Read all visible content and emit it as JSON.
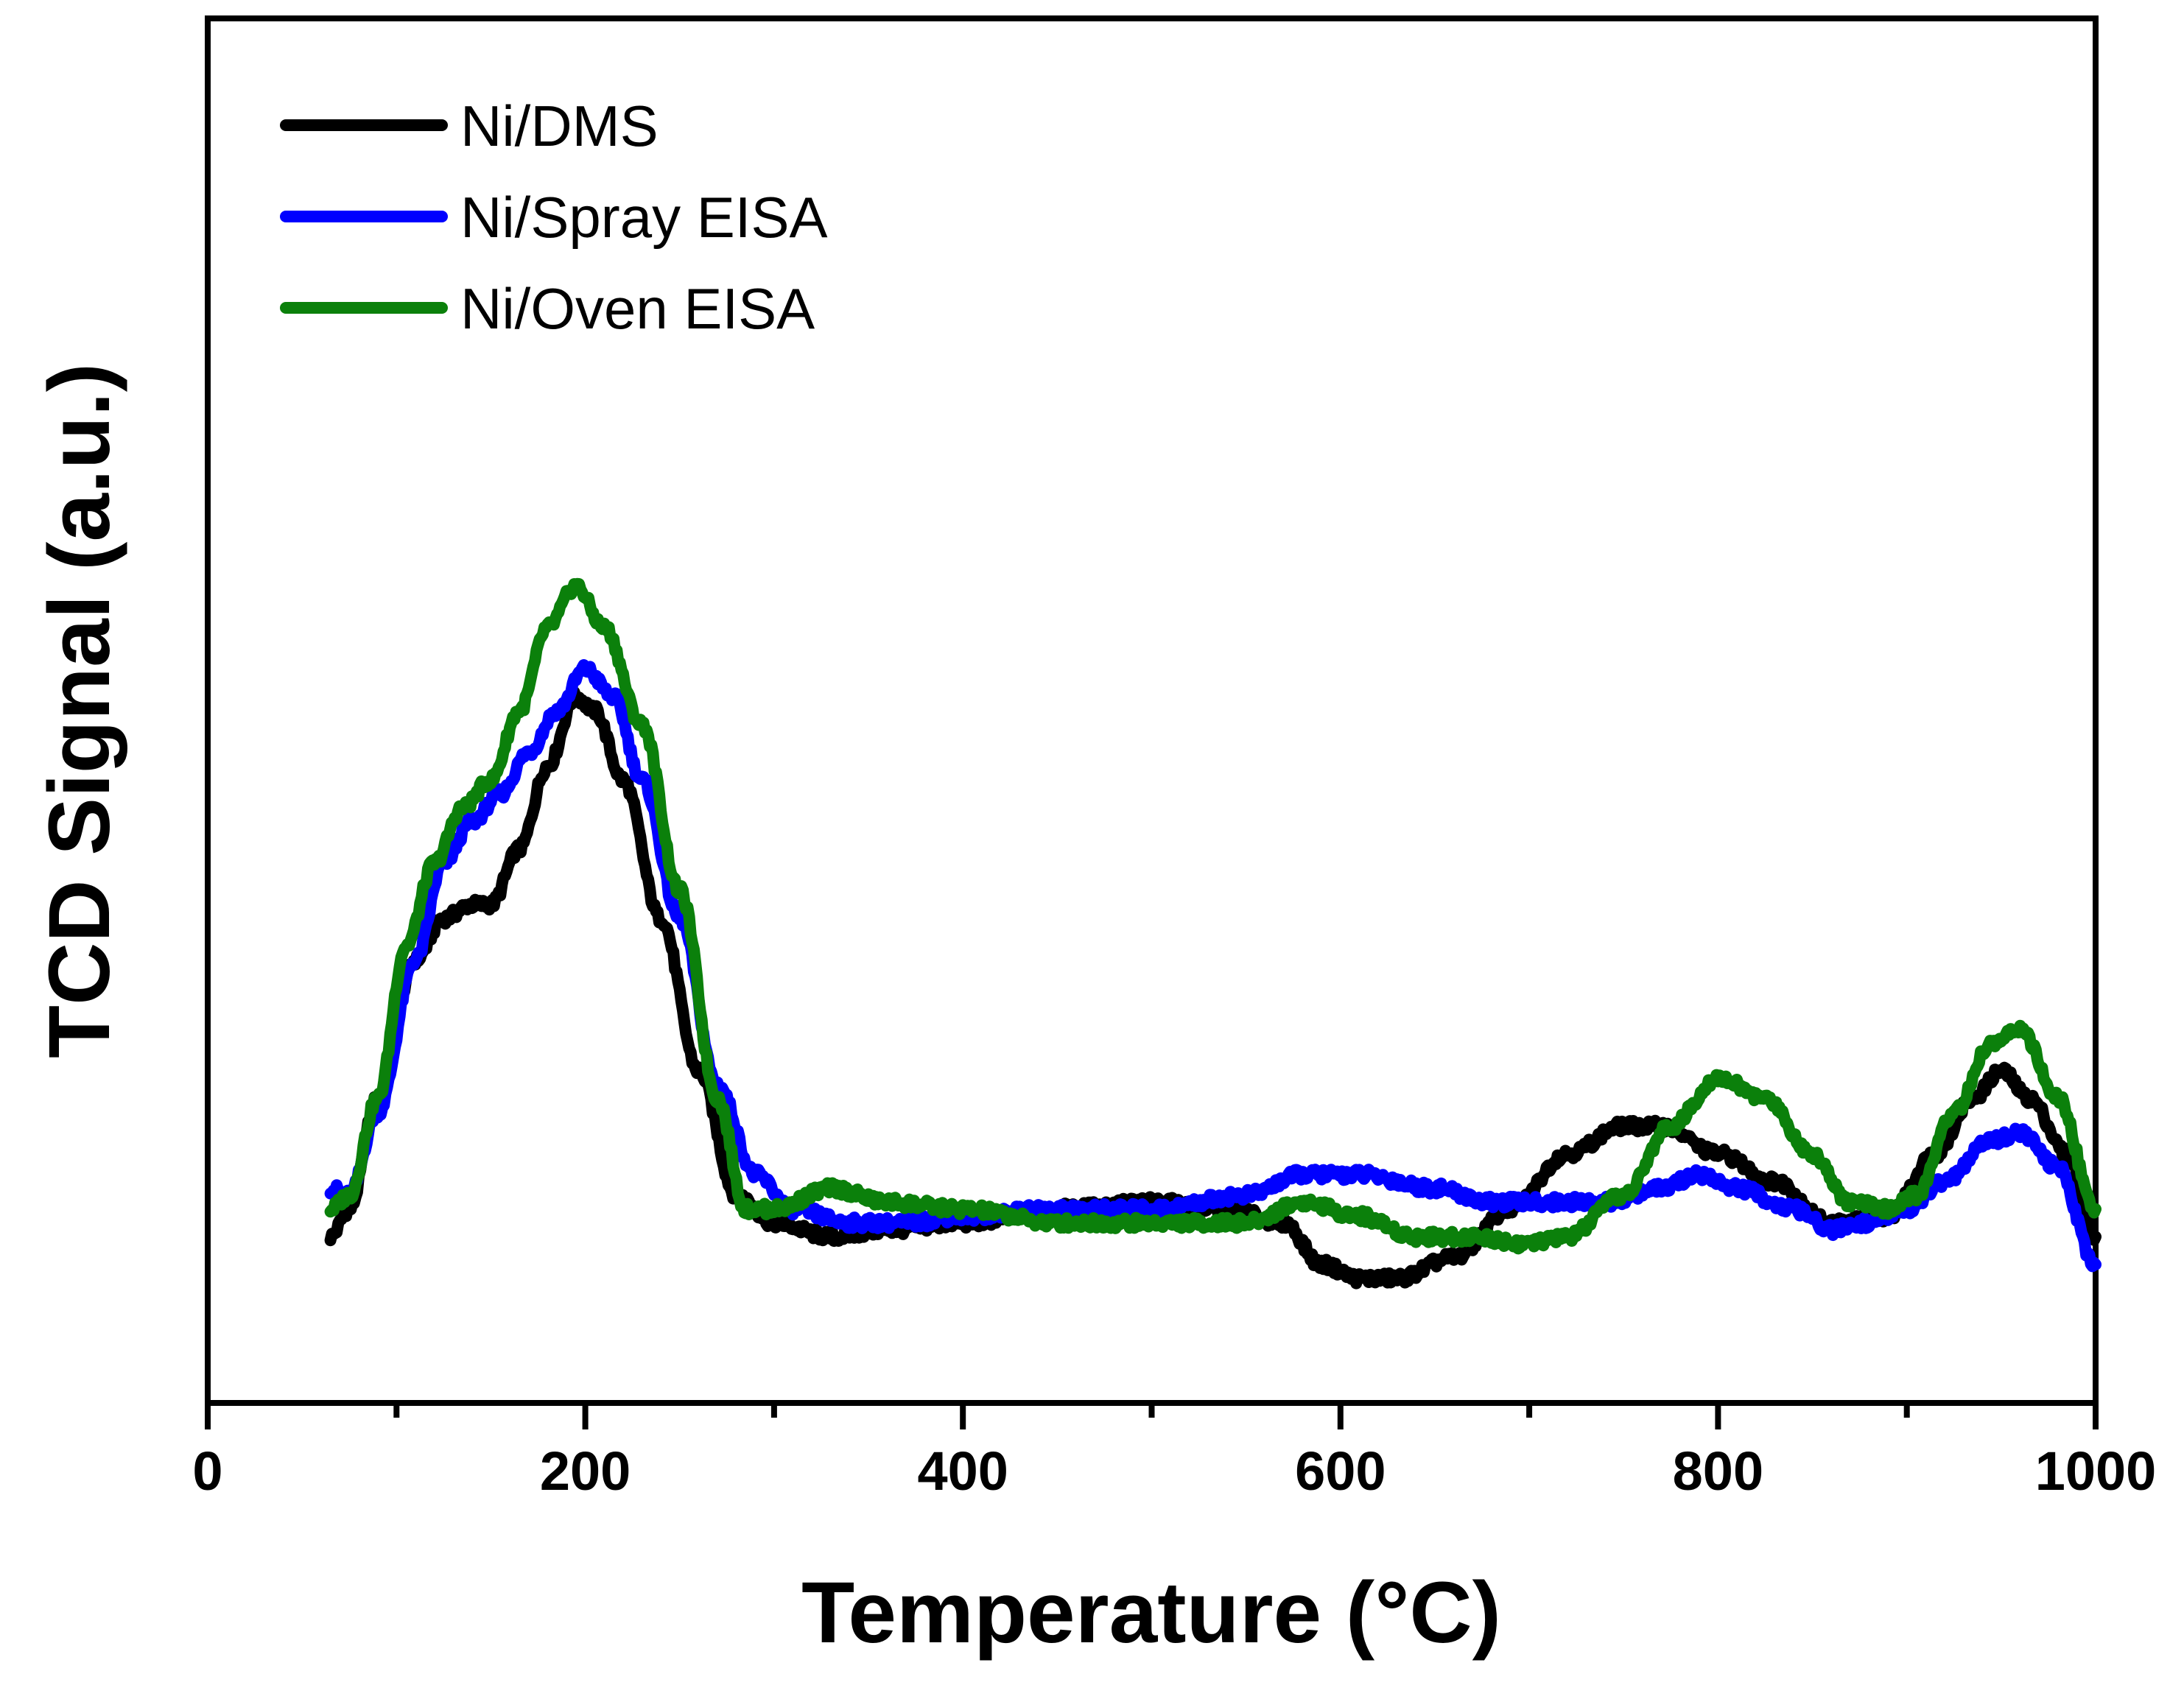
{
  "chart_data": {
    "type": "line",
    "title": "",
    "xlabel": "Temperature (°C)",
    "ylabel": "TCD Signal (a.u.)",
    "xlim": [
      0,
      1000
    ],
    "ylim": [
      0,
      1
    ],
    "x_ticks": [
      0,
      200,
      400,
      600,
      800,
      1000
    ],
    "x_tick_labels": [
      "0",
      "200",
      "400",
      "600",
      "800",
      "1000"
    ],
    "y_ticks_shown": false,
    "legend_position": "top-left",
    "series": [
      {
        "name": "Ni/DMS",
        "color": "#000000",
        "points": [
          [
            65,
            0.12
          ],
          [
            75,
            0.14
          ],
          [
            90,
            0.22
          ],
          [
            110,
            0.32
          ],
          [
            125,
            0.35
          ],
          [
            140,
            0.36
          ],
          [
            150,
            0.36
          ],
          [
            165,
            0.4
          ],
          [
            180,
            0.46
          ],
          [
            195,
            0.51
          ],
          [
            205,
            0.5
          ],
          [
            220,
            0.45
          ],
          [
            240,
            0.35
          ],
          [
            260,
            0.24
          ],
          [
            280,
            0.15
          ],
          [
            300,
            0.13
          ],
          [
            330,
            0.12
          ],
          [
            360,
            0.125
          ],
          [
            400,
            0.13
          ],
          [
            450,
            0.14
          ],
          [
            500,
            0.145
          ],
          [
            540,
            0.14
          ],
          [
            570,
            0.13
          ],
          [
            590,
            0.1
          ],
          [
            610,
            0.09
          ],
          [
            630,
            0.09
          ],
          [
            660,
            0.105
          ],
          [
            690,
            0.14
          ],
          [
            720,
            0.18
          ],
          [
            750,
            0.2
          ],
          [
            770,
            0.2
          ],
          [
            800,
            0.18
          ],
          [
            830,
            0.16
          ],
          [
            860,
            0.13
          ],
          [
            890,
            0.135
          ],
          [
            915,
            0.18
          ],
          [
            935,
            0.22
          ],
          [
            950,
            0.24
          ],
          [
            965,
            0.22
          ],
          [
            985,
            0.18
          ],
          [
            1000,
            0.12
          ]
        ]
      },
      {
        "name": "Ni/Spray EISA",
        "color": "#0000ff",
        "points": [
          [
            65,
            0.155
          ],
          [
            75,
            0.15
          ],
          [
            90,
            0.21
          ],
          [
            110,
            0.32
          ],
          [
            125,
            0.39
          ],
          [
            140,
            0.42
          ],
          [
            155,
            0.44
          ],
          [
            170,
            0.47
          ],
          [
            185,
            0.5
          ],
          [
            200,
            0.53
          ],
          [
            215,
            0.51
          ],
          [
            230,
            0.45
          ],
          [
            250,
            0.35
          ],
          [
            270,
            0.23
          ],
          [
            290,
            0.165
          ],
          [
            310,
            0.14
          ],
          [
            340,
            0.13
          ],
          [
            370,
            0.13
          ],
          [
            400,
            0.135
          ],
          [
            450,
            0.14
          ],
          [
            500,
            0.14
          ],
          [
            550,
            0.15
          ],
          [
            580,
            0.165
          ],
          [
            610,
            0.165
          ],
          [
            650,
            0.155
          ],
          [
            680,
            0.145
          ],
          [
            710,
            0.145
          ],
          [
            740,
            0.145
          ],
          [
            770,
            0.155
          ],
          [
            790,
            0.165
          ],
          [
            810,
            0.155
          ],
          [
            840,
            0.14
          ],
          [
            860,
            0.125
          ],
          [
            880,
            0.13
          ],
          [
            900,
            0.14
          ],
          [
            920,
            0.16
          ],
          [
            945,
            0.19
          ],
          [
            960,
            0.195
          ],
          [
            980,
            0.17
          ],
          [
            1000,
            0.1
          ]
        ]
      },
      {
        "name": "Ni/Oven EISA",
        "color": "#0b800b",
        "points": [
          [
            65,
            0.14
          ],
          [
            75,
            0.15
          ],
          [
            90,
            0.22
          ],
          [
            105,
            0.33
          ],
          [
            120,
            0.39
          ],
          [
            135,
            0.43
          ],
          [
            150,
            0.45
          ],
          [
            165,
            0.5
          ],
          [
            180,
            0.56
          ],
          [
            195,
            0.59
          ],
          [
            210,
            0.56
          ],
          [
            230,
            0.49
          ],
          [
            250,
            0.37
          ],
          [
            270,
            0.22
          ],
          [
            285,
            0.14
          ],
          [
            300,
            0.14
          ],
          [
            330,
            0.155
          ],
          [
            360,
            0.145
          ],
          [
            400,
            0.14
          ],
          [
            450,
            0.13
          ],
          [
            500,
            0.13
          ],
          [
            550,
            0.13
          ],
          [
            580,
            0.145
          ],
          [
            610,
            0.135
          ],
          [
            640,
            0.12
          ],
          [
            670,
            0.12
          ],
          [
            700,
            0.115
          ],
          [
            720,
            0.12
          ],
          [
            750,
            0.15
          ],
          [
            775,
            0.2
          ],
          [
            800,
            0.235
          ],
          [
            825,
            0.22
          ],
          [
            850,
            0.18
          ],
          [
            870,
            0.145
          ],
          [
            890,
            0.14
          ],
          [
            905,
            0.15
          ],
          [
            925,
            0.21
          ],
          [
            945,
            0.26
          ],
          [
            960,
            0.27
          ],
          [
            980,
            0.22
          ],
          [
            1000,
            0.14
          ]
        ]
      }
    ]
  }
}
